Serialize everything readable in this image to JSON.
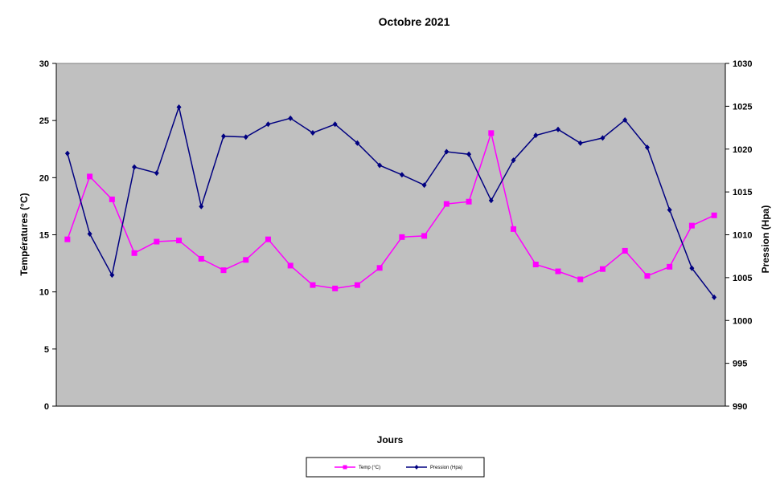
{
  "chart_data": {
    "type": "line",
    "title": "Octobre 2021",
    "xlabel": "Jours",
    "ylabel": "Températures  (°C)",
    "y2label": "Pression (Hpa)",
    "ylim": [
      0,
      30
    ],
    "y2lim": [
      990,
      1030
    ],
    "yticks": [
      "0",
      "5",
      "10",
      "15",
      "20",
      "25",
      "30"
    ],
    "y2ticks": [
      "990",
      "995",
      "1000",
      "1005",
      "1010",
      "1015",
      "1020",
      "1025",
      "1030"
    ],
    "x": [
      1,
      2,
      3,
      4,
      5,
      6,
      7,
      8,
      9,
      10,
      11,
      12,
      13,
      14,
      15,
      16,
      17,
      18,
      19,
      20,
      21,
      22,
      23,
      24,
      25,
      26,
      27,
      28,
      29,
      30
    ],
    "grid": false,
    "plot_background": "#c0c0c0",
    "legend_position": "bottom",
    "series": [
      {
        "name": "Temp (°C)",
        "axis": "left",
        "color": "#ff00ff",
        "marker": "square",
        "values": [
          14.6,
          20.1,
          18.1,
          13.4,
          14.4,
          14.5,
          12.9,
          11.9,
          12.8,
          14.6,
          12.3,
          10.6,
          10.3,
          10.6,
          12.1,
          14.8,
          14.9,
          17.7,
          17.9,
          23.9,
          15.5,
          12.4,
          11.8,
          11.1,
          12.0,
          13.6,
          11.4,
          12.2,
          15.8,
          16.7
        ]
      },
      {
        "name": "Pression (Hpa)",
        "axis": "right",
        "color": "#000080",
        "marker": "diamond",
        "values": [
          1019.5,
          1010.1,
          1005.3,
          1017.9,
          1017.2,
          1024.9,
          1013.3,
          1021.5,
          1021.4,
          1022.9,
          1023.6,
          1021.9,
          1022.9,
          1020.7,
          1018.1,
          1017.0,
          1015.8,
          1019.7,
          1019.4,
          1014.0,
          1018.7,
          1021.6,
          1022.3,
          1020.7,
          1021.3,
          1023.4,
          1020.2,
          1012.9,
          1006.1,
          1002.7
        ]
      }
    ]
  }
}
